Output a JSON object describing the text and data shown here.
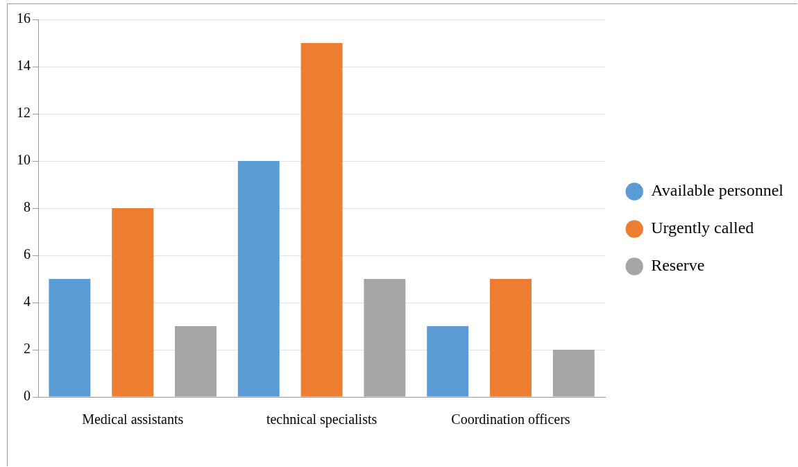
{
  "chart_data": {
    "type": "bar",
    "categories": [
      "Medical assistants",
      "technical specialists",
      "Coordination officers"
    ],
    "series": [
      {
        "name": "Available personnel",
        "color": "#5b9bd5",
        "values": [
          5,
          10,
          3
        ]
      },
      {
        "name": "Urgently called",
        "color": "#ed7d31",
        "values": [
          8,
          15,
          5
        ]
      },
      {
        "name": "Reserve",
        "color": "#a5a5a5",
        "values": [
          3,
          5,
          2
        ]
      }
    ],
    "ylim": [
      0,
      16
    ],
    "yticks": [
      0,
      2,
      4,
      6,
      8,
      10,
      12,
      14,
      16
    ],
    "grid": "y",
    "legend": "right"
  }
}
